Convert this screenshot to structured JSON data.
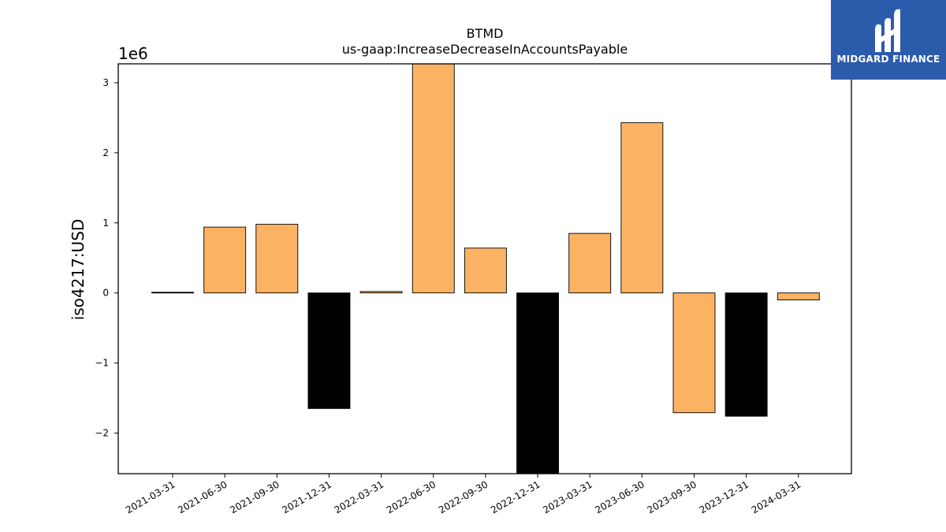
{
  "chart_data": {
    "type": "bar",
    "title": "BTMD",
    "subtitle": "us-gaap:IncreaseDecreaseInAccountsPayable",
    "ylabel": "iso4217:USD",
    "xlabel": "",
    "y_multiplier_label": "1e6",
    "ylim": [
      -2.58,
      3.27
    ],
    "yticks": [
      -2,
      -1,
      0,
      1,
      2,
      3
    ],
    "ytick_labels": [
      "−2",
      "−1",
      "0",
      "1",
      "2",
      "3"
    ],
    "categories": [
      "2021-03-31",
      "2021-06-30",
      "2021-09-30",
      "2021-12-31",
      "2022-03-31",
      "2022-06-30",
      "2022-09-30",
      "2022-12-31",
      "2023-03-31",
      "2023-06-30",
      "2023-09-30",
      "2023-12-31",
      "2024-03-31"
    ],
    "values": [
      0.01,
      0.94,
      0.98,
      -1.65,
      0.02,
      3.3,
      0.64,
      -2.6,
      0.85,
      2.43,
      -1.71,
      -1.76,
      -0.1
    ],
    "bar_colors": [
      "#000000",
      "#fbb262",
      "#fbb262",
      "#000000",
      "#fbb262",
      "#fbb262",
      "#fbb262",
      "#000000",
      "#fbb262",
      "#fbb262",
      "#fbb262",
      "#000000",
      "#fbb262"
    ],
    "grid": false,
    "legend": "none"
  },
  "logo": {
    "text": "MIDGARD FINANCE",
    "icon": "midgard-logo-icon",
    "background": "#2b5bab"
  }
}
